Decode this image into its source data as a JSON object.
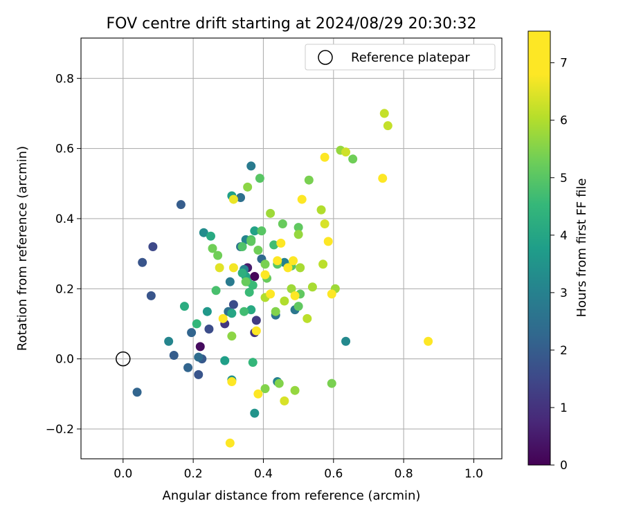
{
  "chart_data": {
    "type": "scatter",
    "title": "FOV centre drift starting at 2024/08/29 20:30:32",
    "xlabel": "Angular distance from reference (arcmin)",
    "ylabel": "Rotation from reference (arcmin)",
    "xlim": [
      -0.12,
      1.08
    ],
    "ylim": [
      -0.285,
      0.915
    ],
    "xticks": [
      0.0,
      0.2,
      0.4,
      0.6,
      0.8,
      1.0
    ],
    "xtick_labels": [
      "0.0",
      "0.2",
      "0.4",
      "0.6",
      "0.8",
      "1.0"
    ],
    "yticks": [
      -0.2,
      0.0,
      0.2,
      0.4,
      0.6,
      0.8
    ],
    "ytick_labels": [
      "−0.2",
      "0.0",
      "0.2",
      "0.4",
      "0.6",
      "0.8"
    ],
    "grid": true,
    "legend": {
      "position": "top-right",
      "entries": [
        {
          "label": "Reference platepar",
          "marker": "hollow-circle"
        }
      ]
    },
    "reference_point": {
      "x": 0.0,
      "y": 0.0,
      "label": "Reference platepar"
    },
    "colorbar": {
      "label": "Hours from first FF file",
      "colormap": "viridis",
      "range": [
        0,
        7.55
      ],
      "ticks": [
        0,
        1,
        2,
        3,
        4,
        5,
        6,
        7
      ],
      "tick_labels": [
        "0",
        "1",
        "2",
        "3",
        "4",
        "5",
        "6",
        "7"
      ]
    },
    "points": [
      {
        "x": 0.22,
        "y": 0.035,
        "c": 0.2
      },
      {
        "x": 0.375,
        "y": 0.235,
        "c": 0.1
      },
      {
        "x": 0.355,
        "y": 0.26,
        "c": 0.5
      },
      {
        "x": 0.375,
        "y": 0.075,
        "c": 1.0
      },
      {
        "x": 0.29,
        "y": 0.1,
        "c": 1.1
      },
      {
        "x": 0.38,
        "y": 0.11,
        "c": 1.2
      },
      {
        "x": 0.085,
        "y": 0.32,
        "c": 1.5
      },
      {
        "x": 0.245,
        "y": 0.085,
        "c": 1.6
      },
      {
        "x": 0.315,
        "y": 0.155,
        "c": 1.6
      },
      {
        "x": 0.055,
        "y": 0.275,
        "c": 1.8
      },
      {
        "x": 0.08,
        "y": 0.18,
        "c": 1.8
      },
      {
        "x": 0.215,
        "y": -0.045,
        "c": 1.8
      },
      {
        "x": 0.225,
        "y": 0.0,
        "c": 1.9
      },
      {
        "x": 0.165,
        "y": 0.44,
        "c": 2.0
      },
      {
        "x": 0.145,
        "y": 0.01,
        "c": 2.0
      },
      {
        "x": 0.04,
        "y": -0.095,
        "c": 2.2
      },
      {
        "x": 0.195,
        "y": 0.075,
        "c": 2.2
      },
      {
        "x": 0.185,
        "y": -0.025,
        "c": 2.2
      },
      {
        "x": 0.395,
        "y": 0.285,
        "c": 2.3
      },
      {
        "x": 0.215,
        "y": 0.005,
        "c": 2.4
      },
      {
        "x": 0.335,
        "y": 0.46,
        "c": 2.5
      },
      {
        "x": 0.3,
        "y": 0.135,
        "c": 2.5
      },
      {
        "x": 0.335,
        "y": 0.32,
        "c": 2.6
      },
      {
        "x": 0.435,
        "y": 0.125,
        "c": 2.6
      },
      {
        "x": 0.49,
        "y": 0.14,
        "c": 2.7
      },
      {
        "x": 0.305,
        "y": 0.22,
        "c": 2.8
      },
      {
        "x": 0.365,
        "y": 0.55,
        "c": 2.8
      },
      {
        "x": 0.44,
        "y": -0.065,
        "c": 3.0
      },
      {
        "x": 0.46,
        "y": 0.275,
        "c": 3.0
      },
      {
        "x": 0.345,
        "y": 0.255,
        "c": 3.0
      },
      {
        "x": 0.13,
        "y": 0.05,
        "c": 3.1
      },
      {
        "x": 0.35,
        "y": 0.34,
        "c": 3.1
      },
      {
        "x": 0.635,
        "y": 0.05,
        "c": 3.2
      },
      {
        "x": 0.23,
        "y": 0.36,
        "c": 3.3
      },
      {
        "x": 0.31,
        "y": -0.06,
        "c": 3.4
      },
      {
        "x": 0.375,
        "y": -0.155,
        "c": 3.5
      },
      {
        "x": 0.24,
        "y": 0.135,
        "c": 3.6
      },
      {
        "x": 0.29,
        "y": -0.005,
        "c": 3.8
      },
      {
        "x": 0.31,
        "y": 0.465,
        "c": 3.8
      },
      {
        "x": 0.375,
        "y": 0.365,
        "c": 3.9
      },
      {
        "x": 0.35,
        "y": 0.235,
        "c": 3.9
      },
      {
        "x": 0.31,
        "y": 0.13,
        "c": 4.0
      },
      {
        "x": 0.365,
        "y": 0.14,
        "c": 4.1
      },
      {
        "x": 0.25,
        "y": 0.35,
        "c": 4.1
      },
      {
        "x": 0.175,
        "y": 0.15,
        "c": 4.2
      },
      {
        "x": 0.34,
        "y": 0.245,
        "c": 4.3
      },
      {
        "x": 0.355,
        "y": 0.22,
        "c": 4.4
      },
      {
        "x": 0.37,
        "y": -0.01,
        "c": 4.5
      },
      {
        "x": 0.21,
        "y": 0.1,
        "c": 4.5
      },
      {
        "x": 0.37,
        "y": 0.21,
        "c": 4.6
      },
      {
        "x": 0.36,
        "y": 0.19,
        "c": 4.6
      },
      {
        "x": 0.345,
        "y": 0.135,
        "c": 4.7
      },
      {
        "x": 0.43,
        "y": 0.325,
        "c": 4.7
      },
      {
        "x": 0.265,
        "y": 0.195,
        "c": 4.8
      },
      {
        "x": 0.34,
        "y": 0.32,
        "c": 4.9
      },
      {
        "x": 0.365,
        "y": 0.34,
        "c": 4.9
      },
      {
        "x": 0.39,
        "y": 0.515,
        "c": 5.0
      },
      {
        "x": 0.395,
        "y": 0.365,
        "c": 5.0
      },
      {
        "x": 0.44,
        "y": 0.27,
        "c": 5.0
      },
      {
        "x": 0.48,
        "y": 0.265,
        "c": 5.0
      },
      {
        "x": 0.5,
        "y": 0.375,
        "c": 5.1
      },
      {
        "x": 0.505,
        "y": 0.185,
        "c": 5.1
      },
      {
        "x": 0.5,
        "y": 0.15,
        "c": 5.1
      },
      {
        "x": 0.365,
        "y": 0.335,
        "c": 5.1
      },
      {
        "x": 0.455,
        "y": 0.385,
        "c": 5.2
      },
      {
        "x": 0.35,
        "y": 0.22,
        "c": 5.2
      },
      {
        "x": 0.41,
        "y": 0.23,
        "c": 5.2
      },
      {
        "x": 0.655,
        "y": 0.57,
        "c": 5.3
      },
      {
        "x": 0.27,
        "y": 0.295,
        "c": 5.3
      },
      {
        "x": 0.255,
        "y": 0.315,
        "c": 5.3
      },
      {
        "x": 0.385,
        "y": 0.31,
        "c": 5.3
      },
      {
        "x": 0.53,
        "y": 0.51,
        "c": 5.4
      },
      {
        "x": 0.595,
        "y": -0.07,
        "c": 5.4
      },
      {
        "x": 0.405,
        "y": 0.27,
        "c": 5.4
      },
      {
        "x": 0.435,
        "y": 0.135,
        "c": 5.5
      },
      {
        "x": 0.445,
        "y": -0.07,
        "c": 5.5
      },
      {
        "x": 0.405,
        "y": -0.085,
        "c": 5.5
      },
      {
        "x": 0.355,
        "y": 0.49,
        "c": 5.6
      },
      {
        "x": 0.31,
        "y": 0.065,
        "c": 5.6
      },
      {
        "x": 0.5,
        "y": 0.355,
        "c": 5.7
      },
      {
        "x": 0.49,
        "y": -0.09,
        "c": 5.7
      },
      {
        "x": 0.62,
        "y": 0.595,
        "c": 5.7
      },
      {
        "x": 0.605,
        "y": 0.2,
        "c": 5.8
      },
      {
        "x": 0.42,
        "y": 0.415,
        "c": 5.8
      },
      {
        "x": 0.48,
        "y": 0.2,
        "c": 5.8
      },
      {
        "x": 0.505,
        "y": 0.26,
        "c": 5.9
      },
      {
        "x": 0.54,
        "y": 0.205,
        "c": 5.9
      },
      {
        "x": 0.565,
        "y": 0.425,
        "c": 6.0
      },
      {
        "x": 0.405,
        "y": 0.175,
        "c": 6.0
      },
      {
        "x": 0.46,
        "y": 0.165,
        "c": 6.0
      },
      {
        "x": 0.525,
        "y": 0.115,
        "c": 6.1
      },
      {
        "x": 0.57,
        "y": 0.27,
        "c": 6.1
      },
      {
        "x": 0.745,
        "y": 0.7,
        "c": 6.2
      },
      {
        "x": 0.755,
        "y": 0.665,
        "c": 6.2
      },
      {
        "x": 0.635,
        "y": 0.59,
        "c": 6.3
      },
      {
        "x": 0.46,
        "y": -0.12,
        "c": 6.4
      },
      {
        "x": 0.575,
        "y": 0.385,
        "c": 6.4
      },
      {
        "x": 0.275,
        "y": 0.26,
        "c": 6.5
      },
      {
        "x": 0.315,
        "y": 0.455,
        "c": 6.6
      },
      {
        "x": 0.315,
        "y": 0.26,
        "c": 6.7
      },
      {
        "x": 0.45,
        "y": 0.33,
        "c": 6.8
      },
      {
        "x": 0.74,
        "y": 0.515,
        "c": 6.8
      },
      {
        "x": 0.38,
        "y": 0.08,
        "c": 6.9
      },
      {
        "x": 0.485,
        "y": 0.28,
        "c": 6.9
      },
      {
        "x": 0.51,
        "y": 0.455,
        "c": 7.0
      },
      {
        "x": 0.49,
        "y": 0.18,
        "c": 7.0
      },
      {
        "x": 0.595,
        "y": 0.185,
        "c": 7.1
      },
      {
        "x": 0.47,
        "y": 0.26,
        "c": 7.1
      },
      {
        "x": 0.44,
        "y": 0.28,
        "c": 7.2
      },
      {
        "x": 0.405,
        "y": 0.24,
        "c": 7.2
      },
      {
        "x": 0.42,
        "y": 0.185,
        "c": 7.3
      },
      {
        "x": 0.385,
        "y": -0.1,
        "c": 7.3
      },
      {
        "x": 0.285,
        "y": 0.115,
        "c": 7.4
      },
      {
        "x": 0.31,
        "y": -0.065,
        "c": 7.4
      },
      {
        "x": 0.305,
        "y": -0.24,
        "c": 7.4
      },
      {
        "x": 0.575,
        "y": 0.575,
        "c": 7.45
      },
      {
        "x": 0.585,
        "y": 0.335,
        "c": 7.45
      },
      {
        "x": 0.87,
        "y": 0.05,
        "c": 7.5
      }
    ]
  }
}
